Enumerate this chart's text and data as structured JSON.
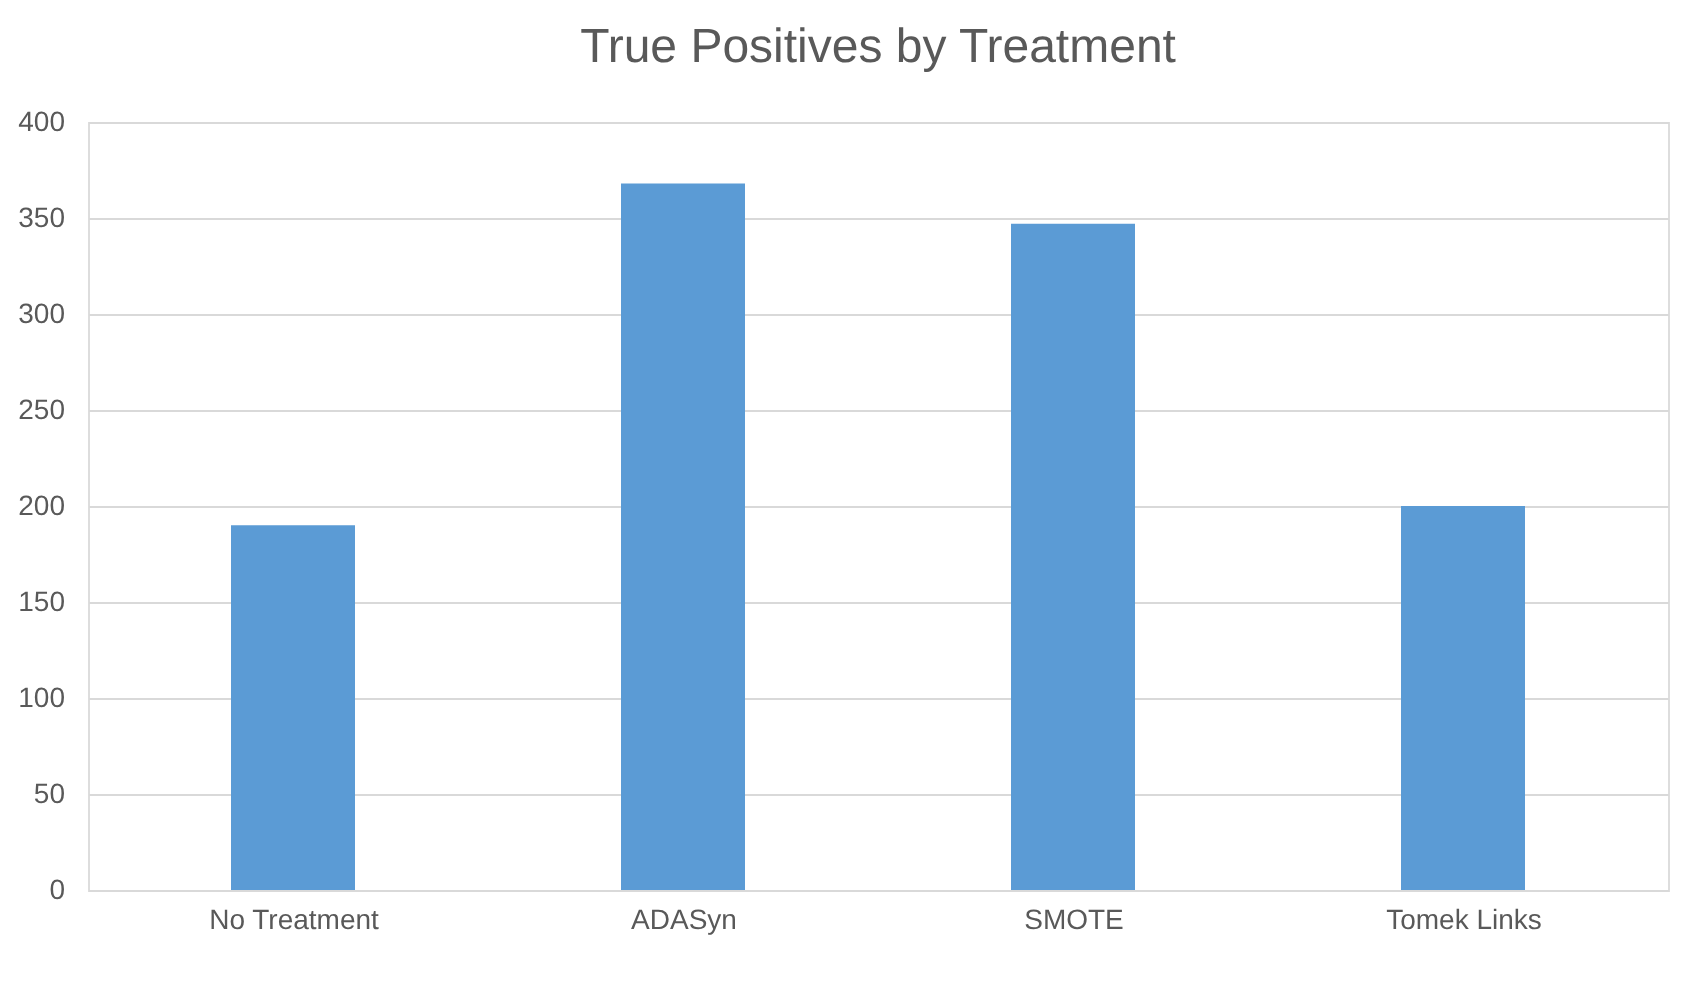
{
  "chart_data": {
    "type": "bar",
    "title": "True Positives by Treatment",
    "categories": [
      "No Treatment",
      "ADASyn",
      "SMOTE",
      "Tomek Links"
    ],
    "values": [
      190,
      368,
      347,
      200
    ],
    "color": "#5b9bd5",
    "ylim": [
      0,
      400
    ],
    "yticks": [
      0,
      50,
      100,
      150,
      200,
      250,
      300,
      350,
      400
    ],
    "grid": "y"
  }
}
